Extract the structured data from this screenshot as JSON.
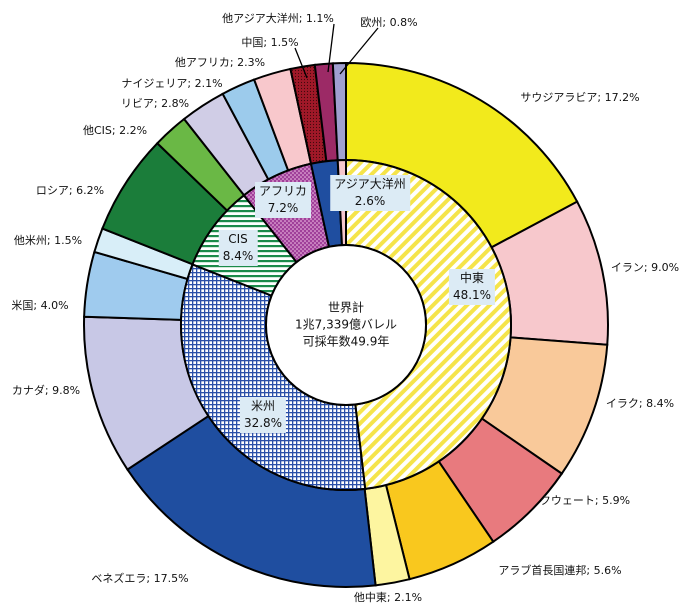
{
  "chart_data": {
    "type": "pie",
    "subtype": "nested-donut",
    "center_text": [
      "世界計",
      "1兆7,339億バレル",
      "可採年数49.9年"
    ],
    "unit": "%",
    "inner": [
      {
        "name": "中東",
        "label": "48.1%",
        "value": 48.1,
        "color": "#f5e44a",
        "pattern": "diagonal-stripes"
      },
      {
        "name": "米州",
        "label": "32.8%",
        "value": 32.8,
        "color": "#2a4fa8",
        "pattern": "grid"
      },
      {
        "name": "CIS",
        "label": "8.4%",
        "value": 8.4,
        "color": "#1b8a4a",
        "pattern": "horizontal-stripes"
      },
      {
        "name": "アフリカ",
        "label": "7.2%",
        "value": 7.2,
        "color": "#a0409a",
        "pattern": "dots"
      },
      {
        "name": "アジア大洋州",
        "label": "2.6%",
        "value": 2.6,
        "color": "#1f4ea0",
        "pattern": "solid"
      },
      {
        "name": "欧州",
        "label": "",
        "value": 0.8,
        "color": "#f5c6cc",
        "pattern": "solid"
      }
    ],
    "outer": [
      {
        "name": "サウジアラビア",
        "text": "サウジアラビア; 17.2%",
        "value": 17.2,
        "color": "#f2ea1c"
      },
      {
        "name": "イラン",
        "text": "イラン; 9.0%",
        "value": 9.0,
        "color": "#f7c8cc"
      },
      {
        "name": "イラク",
        "text": "イラク; 8.4%",
        "value": 8.4,
        "color": "#f9c99a"
      },
      {
        "name": "クウェート",
        "text": "クウェート; 5.9%",
        "value": 5.9,
        "color": "#e87a7e"
      },
      {
        "name": "アラブ首長国連邦",
        "text": "アラブ首長国連邦; 5.6%",
        "value": 5.6,
        "color": "#f9c81e"
      },
      {
        "name": "他中東",
        "text": "他中東; 2.1%",
        "value": 2.1,
        "color": "#fdf5a0"
      },
      {
        "name": "ベネズエラ",
        "text": "ベネズエラ; 17.5%",
        "value": 17.5,
        "color": "#1f4ea0"
      },
      {
        "name": "カナダ",
        "text": "カナダ; 9.8%",
        "value": 9.8,
        "color": "#c8c8e6"
      },
      {
        "name": "米国",
        "text": "米国; 4.0%",
        "value": 4.0,
        "color": "#9fcbee"
      },
      {
        "name": "他米州",
        "text": "他米州; 1.5%",
        "value": 1.5,
        "color": "#d8eef8"
      },
      {
        "name": "ロシア",
        "text": "ロシア; 6.2%",
        "value": 6.2,
        "color": "#1b7d3a"
      },
      {
        "name": "他CIS",
        "text": "他CIS; 2.2%",
        "value": 2.2,
        "color": "#6ab845"
      },
      {
        "name": "リビア",
        "text": "リビア; 2.8%",
        "value": 2.8,
        "color": "#d0cde6"
      },
      {
        "name": "ナイジェリア",
        "text": "ナイジェリア; 2.1%",
        "value": 2.1,
        "color": "#9ccbec"
      },
      {
        "name": "他アフリカ",
        "text": "他アフリカ; 2.3%",
        "value": 2.3,
        "color": "#f8c8cc"
      },
      {
        "name": "中国",
        "text": "中国; 1.5%",
        "value": 1.5,
        "color": "#a01828"
      },
      {
        "name": "他アジア大洋州",
        "text": "他アジア大洋州; 1.1%",
        "value": 1.1,
        "color": "#9c2a66"
      },
      {
        "name": "欧州",
        "text": "欧州; 0.8%",
        "value": 0.8,
        "color": "#a0a0d0"
      }
    ]
  }
}
